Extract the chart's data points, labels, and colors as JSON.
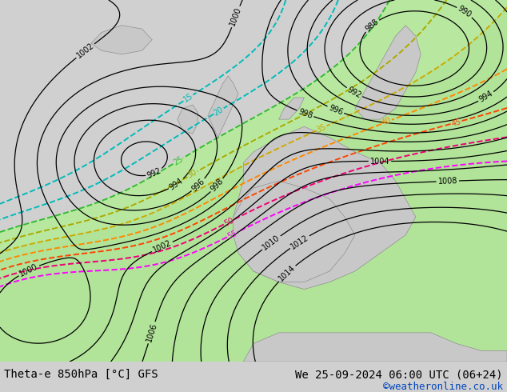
{
  "title_left": "Theta-e 850hPa [°C] GFS",
  "title_right": "We 25-09-2024 06:00 UTC (06+24)",
  "credit": "©weatheronline.co.uk",
  "bg_color": "#d0d0d0",
  "green_fill_color": "#b8e8a0",
  "green_fill_color2": "#a8dc90",
  "bottom_bar_color": "#ffffff",
  "credit_color": "#0044bb",
  "theta_colors": {
    "15": "#00bbbb",
    "20": "#00bbbb",
    "25": "#33bb33",
    "30": "#aaaa00",
    "35": "#ccaa00",
    "40": "#ff8800",
    "45": "#ff4400",
    "50": "#ee0077",
    "55": "#ff00ff"
  },
  "pressure_levels": [
    988,
    990,
    992,
    994,
    996,
    998,
    1000,
    1002,
    1004,
    1006,
    1008,
    1010,
    1012,
    1014
  ]
}
